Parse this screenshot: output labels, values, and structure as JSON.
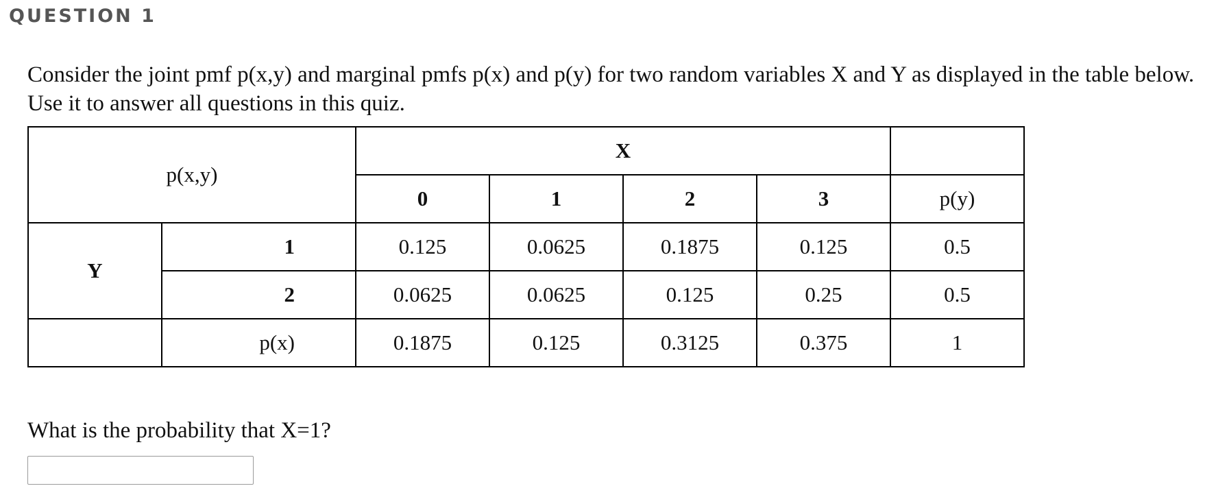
{
  "header": {
    "title": "QUESTION 1"
  },
  "intro": "Consider the joint pmf p(x,y) and marginal pmfs p(x) and p(y) for two random variables X and Y as displayed in the table below. Use it to answer all questions in this quiz.",
  "table": {
    "corner_label": "p(x,y)",
    "x_label": "X",
    "y_label": "Y",
    "x_values": [
      "0",
      "1",
      "2",
      "3"
    ],
    "py_header": "p(y)",
    "px_label": "p(x)",
    "rows": [
      {
        "y": "1",
        "cells": [
          "0.125",
          "0.0625",
          "0.1875",
          "0.125"
        ],
        "py": "0.5"
      },
      {
        "y": "2",
        "cells": [
          "0.0625",
          "0.0625",
          "0.125",
          "0.25"
        ],
        "py": "0.5"
      }
    ],
    "px_row": {
      "cells": [
        "0.1875",
        "0.125",
        "0.3125",
        "0.375"
      ],
      "total": "1"
    }
  },
  "question": {
    "prompt": "What is the probability that X=1?",
    "answer_value": ""
  }
}
